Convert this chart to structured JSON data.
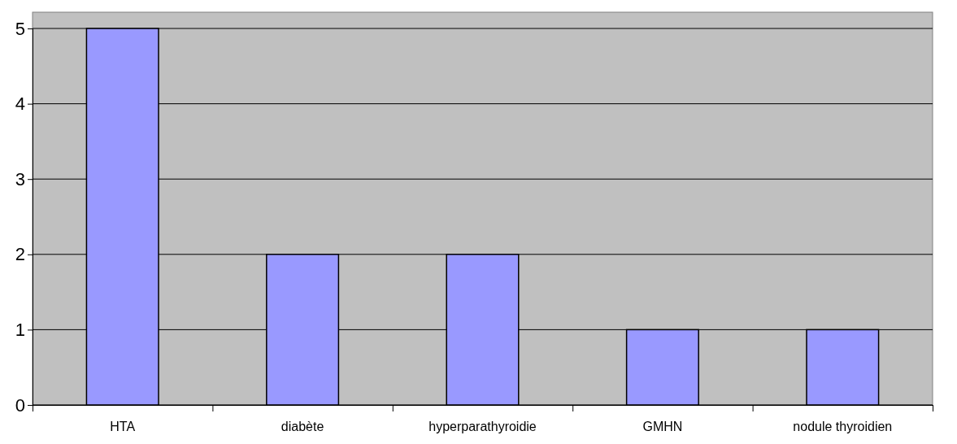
{
  "chart_data": {
    "type": "bar",
    "categories": [
      "HTA",
      "diabète",
      "hyperparathyroidie",
      "GMHN",
      "nodule thyroidien"
    ],
    "values": [
      5,
      2,
      2,
      1,
      1
    ],
    "color": "#9999ff",
    "ylim": [
      0,
      5
    ],
    "yticks": [
      0,
      1,
      2,
      3,
      4,
      5
    ],
    "grid": "y"
  }
}
